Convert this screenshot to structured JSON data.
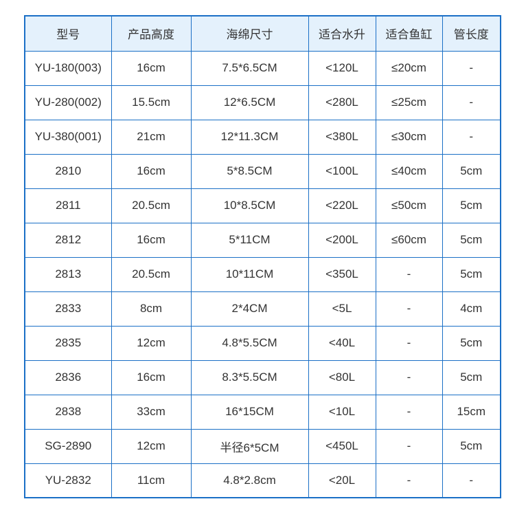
{
  "colors": {
    "border_blue": "#1a6fc6",
    "header_background": "#e4f1fc",
    "text": "#333333",
    "page_background": "#ffffff"
  },
  "table": {
    "headers": [
      "型号",
      "产品高度",
      "海绵尺寸",
      "适合水升",
      "适合鱼缸",
      "管长度"
    ],
    "rows": [
      {
        "cells": [
          "YU-180(003)",
          "16cm",
          "7.5*6.5CM",
          "<120L",
          "≤20cm",
          "-"
        ]
      },
      {
        "cells": [
          "YU-280(002)",
          "15.5cm",
          "12*6.5CM",
          "<280L",
          "≤25cm",
          "-"
        ]
      },
      {
        "cells": [
          "YU-380(001)",
          "21cm",
          "12*11.3CM",
          "<380L",
          "≤30cm",
          "-"
        ]
      },
      {
        "cells": [
          "2810",
          "16cm",
          "5*8.5CM",
          "<100L",
          "≤40cm",
          "5cm"
        ]
      },
      {
        "cells": [
          "2811",
          "20.5cm",
          "10*8.5CM",
          "<220L",
          "≤50cm",
          "5cm"
        ]
      },
      {
        "cells": [
          "2812",
          "16cm",
          "5*11CM",
          "<200L",
          "≤60cm",
          "5cm"
        ]
      },
      {
        "cells": [
          "2813",
          "20.5cm",
          "10*11CM",
          "<350L",
          "-",
          "5cm"
        ]
      },
      {
        "cells": [
          "2833",
          "8cm",
          "2*4CM",
          "<5L",
          "-",
          "4cm"
        ]
      },
      {
        "cells": [
          "2835",
          "12cm",
          "4.8*5.5CM",
          "<40L",
          "-",
          "5cm"
        ]
      },
      {
        "cells": [
          "2836",
          "16cm",
          "8.3*5.5CM",
          "<80L",
          "-",
          "5cm"
        ]
      },
      {
        "cells": [
          "2838",
          "33cm",
          "16*15CM",
          "<10L",
          "-",
          "15cm"
        ]
      },
      {
        "cells": [
          "SG-2890",
          "12cm",
          "半径6*5CM",
          "<450L",
          "-",
          "5cm"
        ]
      },
      {
        "cells": [
          "YU-2832",
          "11cm",
          "4.8*2.8cm",
          "<20L",
          "-",
          "-"
        ]
      }
    ]
  }
}
